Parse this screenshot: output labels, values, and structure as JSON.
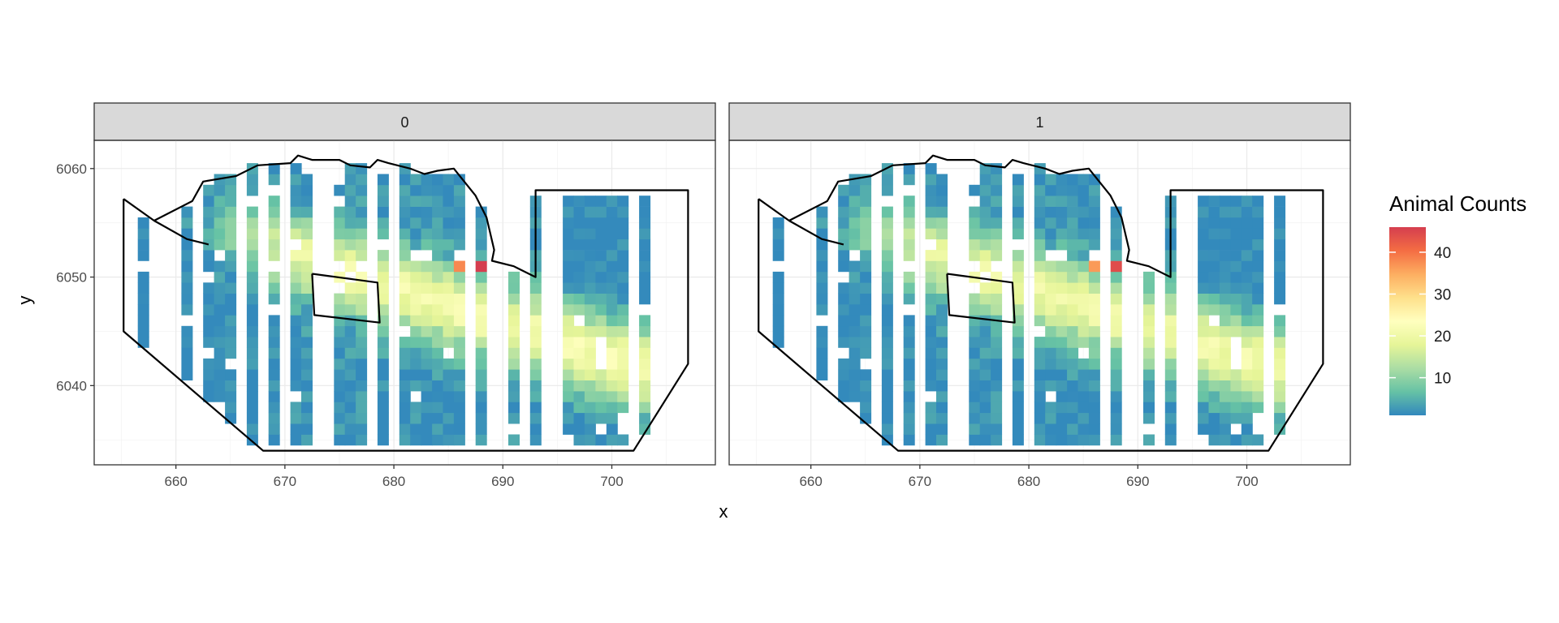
{
  "chart_data": {
    "type": "heatmap",
    "xlabel": "x",
    "ylabel": "y",
    "panels": [
      {
        "label": "0",
        "scale": 1.0
      },
      {
        "label": "1",
        "scale": 0.96
      }
    ],
    "xlim": [
      652.5,
      709.5
    ],
    "ylim": [
      6032.7,
      6062.6
    ],
    "x_ticks": [
      660,
      670,
      680,
      690,
      700
    ],
    "y_ticks": [
      6040,
      6050,
      6060
    ],
    "cell_size": 2,
    "surveyed_columns": [
      657,
      661,
      663,
      664,
      665,
      667,
      669,
      671,
      672,
      675,
      676,
      677,
      679,
      681,
      682,
      683,
      684,
      685,
      686,
      688,
      691,
      693,
      696,
      697,
      698,
      699,
      700,
      701,
      703
    ],
    "hotspots": [
      {
        "x": 686,
        "y": 6051,
        "value": 38
      },
      {
        "x": 688,
        "y": 6051,
        "value": 46
      }
    ],
    "legend": {
      "title": "Animal Counts",
      "ticks": [
        10,
        20,
        30,
        40
      ],
      "range": [
        1,
        46
      ],
      "colors": [
        "#3288bd",
        "#66c2a5",
        "#abdda4",
        "#e6f598",
        "#ffffbf",
        "#fee08b",
        "#fdae61",
        "#f46d43",
        "#d53e4f"
      ]
    },
    "outer_boundary": [
      [
        655.2,
        6057.2
      ],
      [
        658.0,
        6055.2
      ],
      [
        661.5,
        6057.0
      ],
      [
        662.5,
        6058.8
      ],
      [
        665.5,
        6059.3
      ],
      [
        667.5,
        6060.3
      ],
      [
        670.5,
        6060.5
      ],
      [
        671.2,
        6061.2
      ],
      [
        672.5,
        6060.8
      ],
      [
        675.0,
        6060.8
      ],
      [
        676.0,
        6060.3
      ],
      [
        677.8,
        6060.1
      ],
      [
        678.5,
        6060.8
      ],
      [
        679.5,
        6060.5
      ],
      [
        681.5,
        6060.0
      ],
      [
        682.8,
        6059.5
      ],
      [
        684.0,
        6059.8
      ],
      [
        685.5,
        6060.0
      ],
      [
        687.5,
        6057.5
      ],
      [
        688.5,
        6055.5
      ],
      [
        689.2,
        6052.5
      ],
      [
        689.0,
        6051.5
      ],
      [
        691.0,
        6051.0
      ],
      [
        693.0,
        6050.0
      ],
      [
        693.0,
        6058.0
      ],
      [
        707.0,
        6058.0
      ],
      [
        707.0,
        6042.0
      ],
      [
        702.0,
        6034.0
      ],
      [
        668.0,
        6034.0
      ],
      [
        655.2,
        6045.0
      ],
      [
        655.2,
        6057.2
      ]
    ],
    "inlet_line": [
      [
        658.0,
        6055.2
      ],
      [
        661.0,
        6053.5
      ],
      [
        663.0,
        6053.0
      ]
    ],
    "inner_polygon": [
      [
        672.5,
        6050.3
      ],
      [
        678.5,
        6049.5
      ],
      [
        678.7,
        6045.8
      ],
      [
        672.7,
        6046.5
      ],
      [
        672.5,
        6050.3
      ]
    ]
  }
}
